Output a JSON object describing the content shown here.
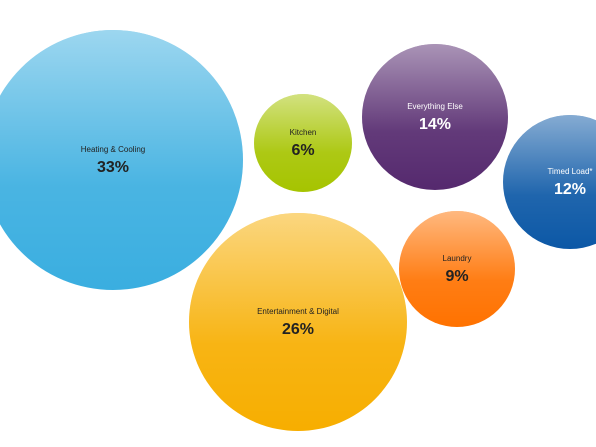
{
  "chart_data": {
    "type": "bubble",
    "categories": [
      "Heating & Cooling",
      "Kitchen",
      "Everything Else",
      "Timed Load*",
      "Laundry",
      "Entertainment & Digital"
    ],
    "values": [
      33,
      6,
      14,
      12,
      9,
      26
    ],
    "value_labels": [
      "33%",
      "6%",
      "14%",
      "12%",
      "9%",
      "26%"
    ],
    "colors": [
      "#3aaee0",
      "#a6c400",
      "#55296e",
      "#0c58a6",
      "#ff7200",
      "#f7ae00"
    ],
    "text_colors": [
      "#222222",
      "#222222",
      "#ffffff",
      "#ffffff",
      "#222222",
      "#222222"
    ]
  }
}
